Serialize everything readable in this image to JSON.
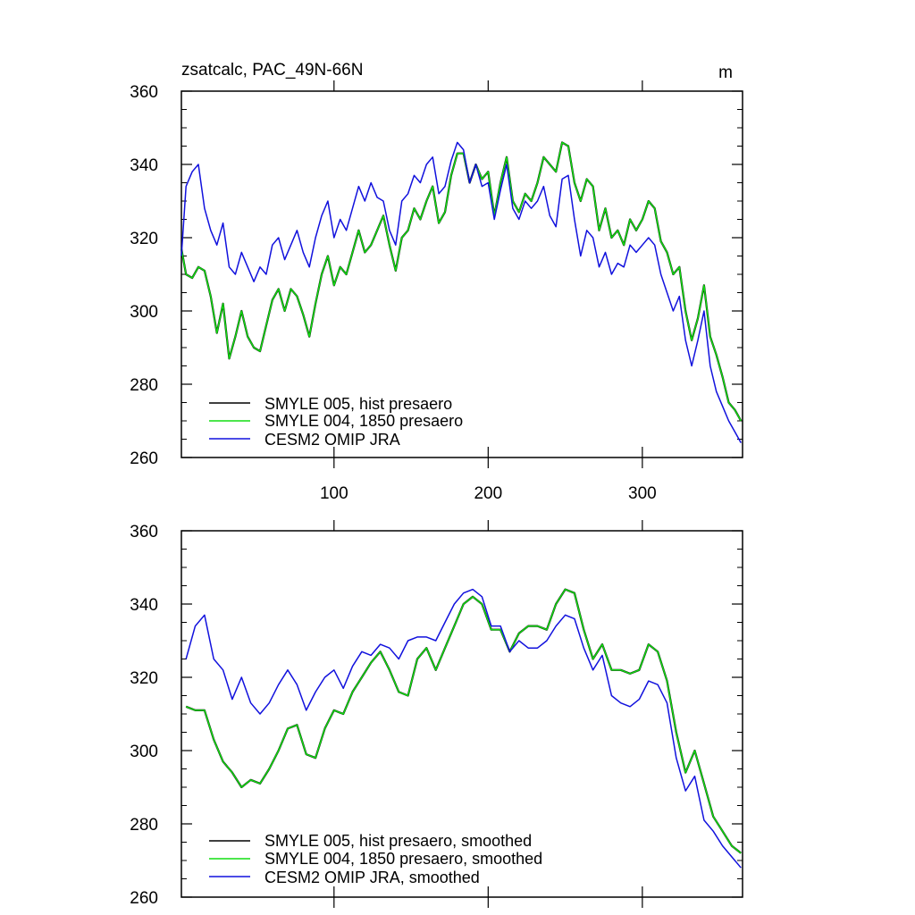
{
  "colors": {
    "black": "#000000",
    "green": "#11dd11",
    "blue": "#1111dd"
  },
  "chart_data": [
    {
      "type": "line",
      "title": "zsatcalc, PAC_49N-66N",
      "units_label": "m",
      "xlim": [
        1,
        365
      ],
      "ylim": [
        260,
        360
      ],
      "yticks": [
        "260",
        "280",
        "300",
        "320",
        "340",
        "360"
      ],
      "xticks": [
        "100",
        "200",
        "300"
      ],
      "legend_position": "bottom-left",
      "series": [
        {
          "name": "SMYLE 005, hist presaero",
          "color_key": "black",
          "x": [
            1,
            4,
            8,
            12,
            16,
            20,
            24,
            28,
            32,
            36,
            40,
            44,
            48,
            52,
            56,
            60,
            64,
            68,
            72,
            76,
            80,
            84,
            88,
            92,
            96,
            100,
            104,
            108,
            112,
            116,
            120,
            124,
            128,
            132,
            136,
            140,
            144,
            148,
            152,
            156,
            160,
            164,
            168,
            172,
            176,
            180,
            184,
            188,
            192,
            196,
            200,
            204,
            208,
            212,
            216,
            220,
            224,
            228,
            232,
            236,
            240,
            244,
            248,
            252,
            256,
            260,
            264,
            268,
            272,
            276,
            280,
            284,
            288,
            292,
            296,
            300,
            304,
            308,
            312,
            316,
            320,
            324,
            328,
            332,
            336,
            340,
            344,
            348,
            352,
            356,
            360,
            364
          ],
          "y": [
            317,
            310,
            309,
            312,
            311,
            304,
            294,
            302,
            287,
            293,
            300,
            293,
            290,
            289,
            296,
            303,
            306,
            300,
            306,
            304,
            299,
            293,
            302,
            310,
            315,
            307,
            312,
            310,
            316,
            322,
            316,
            318,
            322,
            326,
            318,
            311,
            320,
            322,
            328,
            325,
            330,
            334,
            324,
            327,
            337,
            343,
            343,
            335,
            340,
            336,
            338,
            326,
            335,
            342,
            330,
            327,
            332,
            330,
            335,
            342,
            340,
            338,
            346,
            345,
            335,
            330,
            336,
            334,
            322,
            328,
            320,
            322,
            318,
            325,
            322,
            325,
            330,
            328,
            319,
            316,
            310,
            312,
            300,
            292,
            298,
            307,
            293,
            288,
            282,
            275,
            273,
            270
          ]
        },
        {
          "name": "SMYLE 004, 1850 presaero",
          "color_key": "green",
          "x": [
            1,
            4,
            8,
            12,
            16,
            20,
            24,
            28,
            32,
            36,
            40,
            44,
            48,
            52,
            56,
            60,
            64,
            68,
            72,
            76,
            80,
            84,
            88,
            92,
            96,
            100,
            104,
            108,
            112,
            116,
            120,
            124,
            128,
            132,
            136,
            140,
            144,
            148,
            152,
            156,
            160,
            164,
            168,
            172,
            176,
            180,
            184,
            188,
            192,
            196,
            200,
            204,
            208,
            212,
            216,
            220,
            224,
            228,
            232,
            236,
            240,
            244,
            248,
            252,
            256,
            260,
            264,
            268,
            272,
            276,
            280,
            284,
            288,
            292,
            296,
            300,
            304,
            308,
            312,
            316,
            320,
            324,
            328,
            332,
            336,
            340,
            344,
            348,
            352,
            356,
            360,
            364
          ],
          "y": [
            317,
            310,
            309,
            312,
            311,
            304,
            294,
            302,
            287,
            293,
            300,
            293,
            290,
            289,
            296,
            303,
            306,
            300,
            306,
            304,
            299,
            293,
            302,
            310,
            315,
            307,
            312,
            310,
            316,
            322,
            316,
            318,
            322,
            326,
            318,
            311,
            320,
            322,
            328,
            325,
            330,
            334,
            324,
            327,
            337,
            343,
            343,
            335,
            340,
            336,
            338,
            326,
            335,
            342,
            330,
            327,
            332,
            330,
            335,
            342,
            340,
            338,
            346,
            345,
            335,
            330,
            336,
            334,
            322,
            328,
            320,
            322,
            318,
            325,
            322,
            325,
            330,
            328,
            319,
            316,
            310,
            312,
            300,
            292,
            298,
            307,
            293,
            288,
            282,
            275,
            273,
            270
          ]
        },
        {
          "name": "CESM2 OMIP JRA",
          "color_key": "blue",
          "x": [
            1,
            4,
            8,
            12,
            16,
            20,
            24,
            28,
            32,
            36,
            40,
            44,
            48,
            52,
            56,
            60,
            64,
            68,
            72,
            76,
            80,
            84,
            88,
            92,
            96,
            100,
            104,
            108,
            112,
            116,
            120,
            124,
            128,
            132,
            136,
            140,
            144,
            148,
            152,
            156,
            160,
            164,
            168,
            172,
            176,
            180,
            184,
            188,
            192,
            196,
            200,
            204,
            208,
            212,
            216,
            220,
            224,
            228,
            232,
            236,
            240,
            244,
            248,
            252,
            256,
            260,
            264,
            268,
            272,
            276,
            280,
            284,
            288,
            292,
            296,
            300,
            304,
            308,
            312,
            316,
            320,
            324,
            328,
            332,
            336,
            340,
            344,
            348,
            352,
            356,
            360,
            364
          ],
          "y": [
            315,
            334,
            338,
            340,
            328,
            322,
            318,
            324,
            312,
            310,
            316,
            312,
            308,
            312,
            310,
            318,
            320,
            314,
            318,
            322,
            316,
            312,
            320,
            326,
            330,
            320,
            325,
            322,
            328,
            334,
            330,
            335,
            331,
            330,
            322,
            318,
            330,
            332,
            337,
            335,
            340,
            342,
            332,
            334,
            341,
            346,
            344,
            335,
            340,
            334,
            335,
            325,
            333,
            340,
            328,
            325,
            330,
            328,
            330,
            334,
            326,
            323,
            336,
            337,
            325,
            315,
            322,
            320,
            312,
            316,
            310,
            313,
            312,
            318,
            316,
            318,
            320,
            318,
            310,
            305,
            300,
            304,
            292,
            285,
            292,
            300,
            285,
            278,
            274,
            270,
            267,
            264
          ]
        }
      ]
    },
    {
      "type": "line",
      "title": "",
      "xlim": [
        1,
        365
      ],
      "ylim": [
        260,
        360
      ],
      "yticks": [
        "260",
        "280",
        "300",
        "320",
        "340",
        "360"
      ],
      "xticks": [],
      "legend_position": "bottom-left",
      "series": [
        {
          "name": "SMYLE 005, hist presaero, smoothed",
          "color_key": "black",
          "x": [
            4,
            10,
            16,
            22,
            28,
            34,
            40,
            46,
            52,
            58,
            64,
            70,
            76,
            82,
            88,
            94,
            100,
            106,
            112,
            118,
            124,
            130,
            136,
            142,
            148,
            154,
            160,
            166,
            172,
            178,
            184,
            190,
            196,
            202,
            208,
            214,
            220,
            226,
            232,
            238,
            244,
            250,
            256,
            262,
            268,
            274,
            280,
            286,
            292,
            298,
            304,
            310,
            316,
            322,
            328,
            334,
            340,
            346,
            352,
            358,
            364
          ],
          "y": [
            312,
            311,
            311,
            303,
            297,
            294,
            290,
            292,
            291,
            295,
            300,
            306,
            307,
            299,
            298,
            306,
            311,
            310,
            316,
            320,
            324,
            327,
            322,
            316,
            315,
            325,
            328,
            322,
            328,
            334,
            340,
            342,
            340,
            333,
            333,
            327,
            332,
            334,
            334,
            333,
            340,
            344,
            343,
            333,
            325,
            329,
            322,
            322,
            321,
            322,
            329,
            327,
            319,
            305,
            294,
            300,
            291,
            282,
            278,
            274,
            272
          ]
        },
        {
          "name": "SMYLE 004, 1850 presaero, smoothed",
          "color_key": "green",
          "x": [
            4,
            10,
            16,
            22,
            28,
            34,
            40,
            46,
            52,
            58,
            64,
            70,
            76,
            82,
            88,
            94,
            100,
            106,
            112,
            118,
            124,
            130,
            136,
            142,
            148,
            154,
            160,
            166,
            172,
            178,
            184,
            190,
            196,
            202,
            208,
            214,
            220,
            226,
            232,
            238,
            244,
            250,
            256,
            262,
            268,
            274,
            280,
            286,
            292,
            298,
            304,
            310,
            316,
            322,
            328,
            334,
            340,
            346,
            352,
            358,
            364
          ],
          "y": [
            312,
            311,
            311,
            303,
            297,
            294,
            290,
            292,
            291,
            295,
            300,
            306,
            307,
            299,
            298,
            306,
            311,
            310,
            316,
            320,
            324,
            327,
            322,
            316,
            315,
            325,
            328,
            322,
            328,
            334,
            340,
            342,
            340,
            333,
            333,
            327,
            332,
            334,
            334,
            333,
            340,
            344,
            343,
            333,
            325,
            329,
            322,
            322,
            321,
            322,
            329,
            327,
            319,
            305,
            294,
            300,
            291,
            282,
            278,
            274,
            272
          ]
        },
        {
          "name": "CESM2 OMIP JRA, smoothed",
          "color_key": "blue",
          "x": [
            4,
            10,
            16,
            22,
            28,
            34,
            40,
            46,
            52,
            58,
            64,
            70,
            76,
            82,
            88,
            94,
            100,
            106,
            112,
            118,
            124,
            130,
            136,
            142,
            148,
            154,
            160,
            166,
            172,
            178,
            184,
            190,
            196,
            202,
            208,
            214,
            220,
            226,
            232,
            238,
            244,
            250,
            256,
            262,
            268,
            274,
            280,
            286,
            292,
            298,
            304,
            310,
            316,
            322,
            328,
            334,
            340,
            346,
            352,
            358,
            364
          ],
          "y": [
            325,
            334,
            337,
            325,
            322,
            314,
            320,
            313,
            310,
            313,
            318,
            322,
            318,
            311,
            316,
            320,
            322,
            317,
            323,
            327,
            326,
            329,
            328,
            325,
            330,
            331,
            331,
            330,
            335,
            340,
            343,
            344,
            342,
            334,
            334,
            327,
            330,
            328,
            328,
            330,
            334,
            337,
            336,
            328,
            322,
            326,
            315,
            313,
            312,
            314,
            319,
            318,
            313,
            298,
            289,
            293,
            281,
            278,
            274,
            271,
            268
          ]
        }
      ]
    }
  ]
}
